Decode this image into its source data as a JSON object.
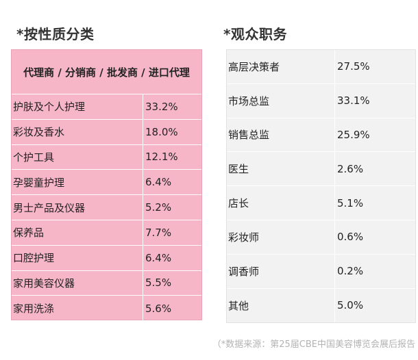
{
  "left_section": {
    "title": "*按性质分类",
    "header": "代理商 / 分销商 / 批发商 / 进口代理",
    "rows": [
      {
        "label": "护肤及个人护理",
        "value": "33.2%"
      },
      {
        "label": "彩妆及香水",
        "value": "18.0%"
      },
      {
        "label": "个护工具",
        "value": "12.1%"
      },
      {
        "label": "孕婴童护理",
        "value": "6.4%"
      },
      {
        "label": "男士产品及仪器",
        "value": "5.2%"
      },
      {
        "label": "保养品",
        "value": "7.7%"
      },
      {
        "label": "口腔护理",
        "value": "6.4%"
      },
      {
        "label": "家用美容仪器",
        "value": "5.5%"
      },
      {
        "label": "家用洗涤",
        "value": "5.6%"
      }
    ],
    "bg_color": "#f7b6c8"
  },
  "right_section": {
    "title": "*观众职务",
    "rows": [
      {
        "label": "高层决策者",
        "value": "27.5%"
      },
      {
        "label": "市场总监",
        "value": "33.1%"
      },
      {
        "label": "销售总监",
        "value": "25.9%"
      },
      {
        "label": "医生",
        "value": "2.6%"
      },
      {
        "label": "店长",
        "value": "5.1%"
      },
      {
        "label": "彩妆师",
        "value": "0.6%"
      },
      {
        "label": "调香师",
        "value": "0.2%"
      },
      {
        "label": "其他",
        "value": "5.0%"
      }
    ],
    "bg_color": "#f2f2f2"
  },
  "source_note": "（*数据来源：第25届CBE中国美容博览会展后报告"
}
